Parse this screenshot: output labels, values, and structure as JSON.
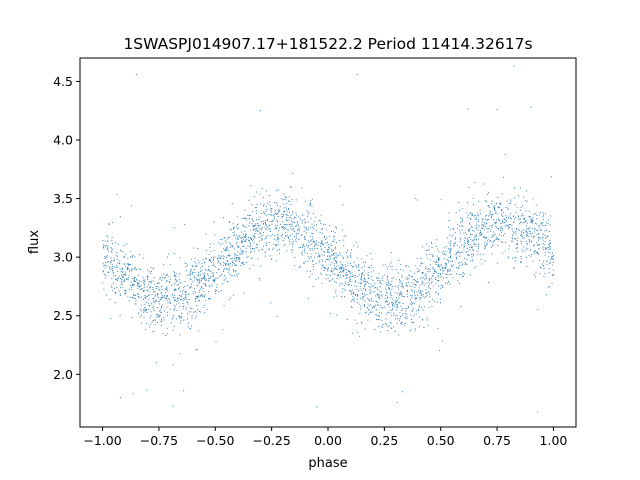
{
  "chart_data": {
    "type": "scatter",
    "title": "1SWASPJ014907.17+181522.2 Period 11414.32617s",
    "xlabel": "phase",
    "ylabel": "flux",
    "xlim": [
      -1.1,
      1.1
    ],
    "ylim": [
      1.55,
      4.7
    ],
    "xticks": [
      -1.0,
      -0.75,
      -0.5,
      -0.25,
      0.0,
      0.25,
      0.5,
      0.75,
      1.0
    ],
    "xtick_labels": [
      "−1.00",
      "−0.75",
      "−0.50",
      "−0.25",
      "0.00",
      "0.25",
      "0.50",
      "0.75",
      "1.00"
    ],
    "yticks": [
      2.0,
      2.5,
      3.0,
      3.5,
      4.0,
      4.5
    ],
    "ytick_labels": [
      "2.0",
      "2.5",
      "3.0",
      "3.5",
      "4.0",
      "4.5"
    ],
    "grid": false,
    "marker_color": "#1f77b4",
    "series": [
      {
        "model": "folded light curve, sinusoidal",
        "x_range": [
          -1.0,
          1.0
        ],
        "mean_flux": 2.96,
        "amplitude": 0.32,
        "minimum_phases": [
          -0.72,
          0.28
        ],
        "maximum_phases": [
          -0.22,
          0.78
        ],
        "scatter_sigma": 0.14,
        "n_points": 3200,
        "outliers": [
          [
            -0.85,
            4.56
          ],
          [
            -0.3,
            4.25
          ],
          [
            0.13,
            4.56
          ],
          [
            0.75,
            4.26
          ],
          [
            0.9,
            4.28
          ],
          [
            -0.92,
            1.8
          ],
          [
            -0.64,
            1.86
          ],
          [
            0.33,
            1.85
          ],
          [
            0.93,
            1.68
          ],
          [
            -0.05,
            1.72
          ]
        ]
      }
    ]
  }
}
